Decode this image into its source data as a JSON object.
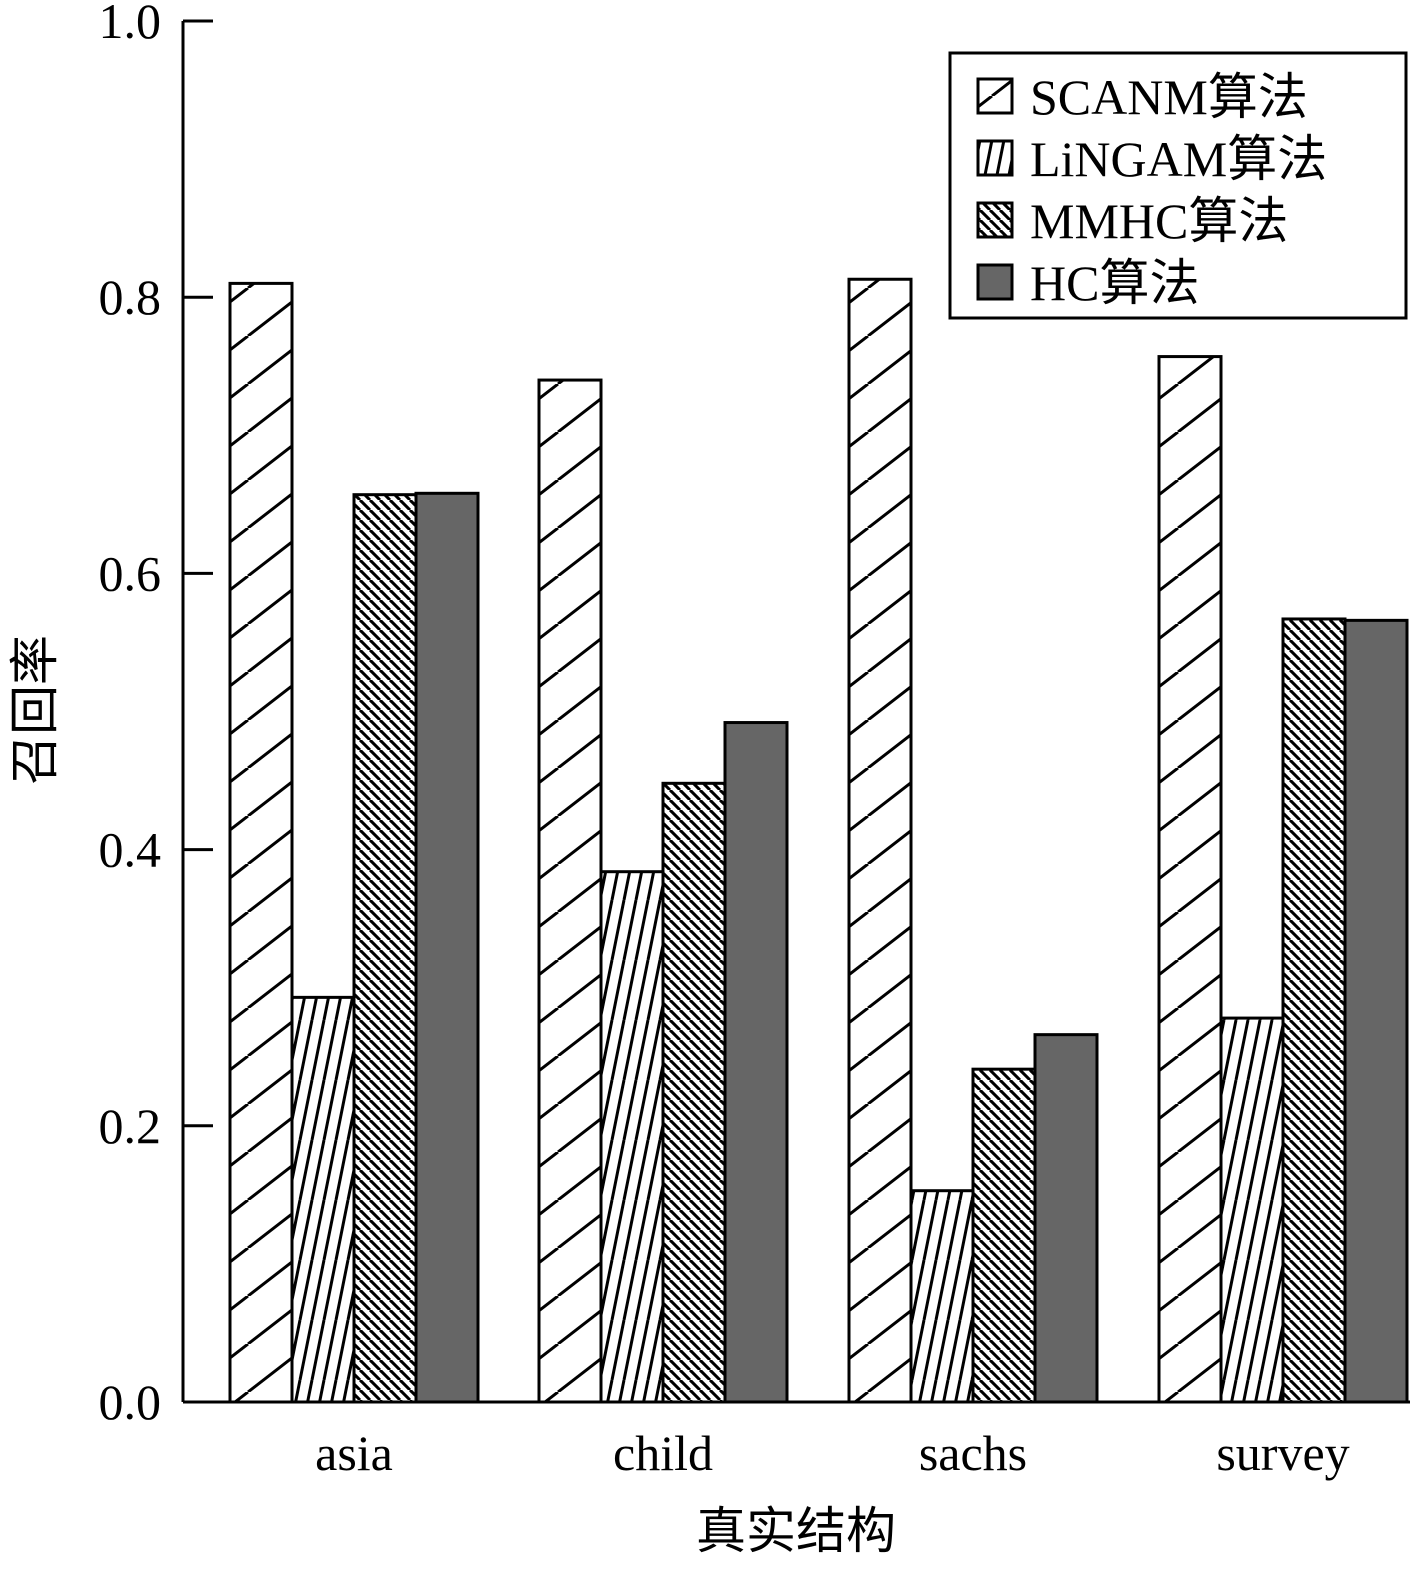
{
  "chart_data": {
    "type": "bar",
    "xlabel": "真实结构",
    "ylabel": "召回率",
    "ylim": [
      0,
      1.0
    ],
    "yticks": [
      "0.0",
      "0.2",
      "0.4",
      "0.6",
      "0.8",
      "1.0"
    ],
    "categories": [
      "asia",
      "child",
      "sachs",
      "survey"
    ],
    "series": [
      {
        "name": "SCANM算法",
        "pattern": "wide-diagonal",
        "values": [
          0.81,
          0.74,
          0.813,
          0.757
        ]
      },
      {
        "name": "LiNGAM算法",
        "pattern": "steep-diagonal",
        "values": [
          0.293,
          0.384,
          0.153,
          0.278
        ]
      },
      {
        "name": "MMHC算法",
        "pattern": "dense-back-diagonal",
        "values": [
          0.657,
          0.448,
          0.241,
          0.567
        ]
      },
      {
        "name": "HC算法",
        "pattern": "solid-gray",
        "values": [
          0.658,
          0.492,
          0.266,
          0.566
        ]
      }
    ],
    "legend_position": "top-right",
    "grid": false,
    "colors": {
      "solid": "#666666",
      "stroke": "#000000",
      "background": "#ffffff"
    }
  }
}
